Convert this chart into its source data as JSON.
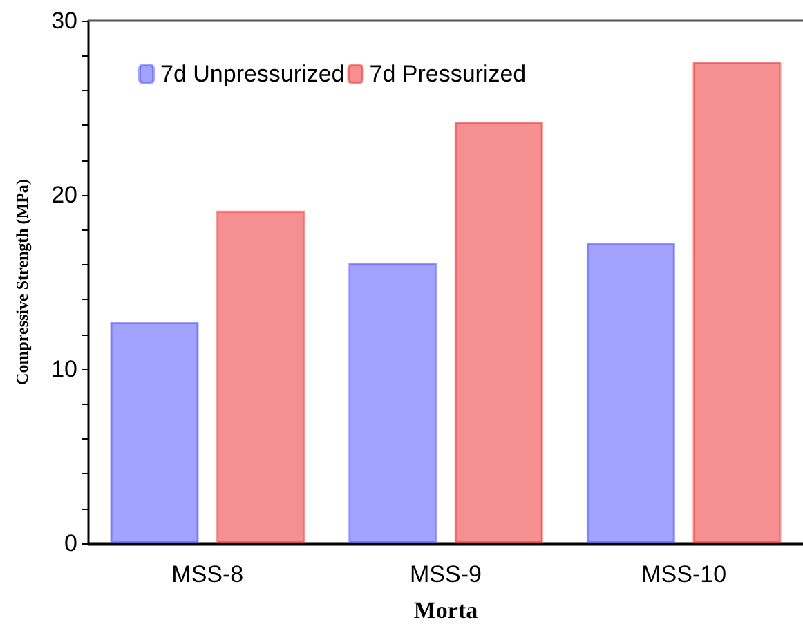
{
  "chart_data": {
    "type": "bar",
    "categories": [
      "MSS-8",
      "MSS-9",
      "MSS-10"
    ],
    "series": [
      {
        "name": "7d Unpressurized",
        "color": "#5555ff",
        "values": [
          12.7,
          16.1,
          17.25
        ]
      },
      {
        "name": "7d Pressurized",
        "color": "#ee3333",
        "values": [
          19.1,
          24.2,
          27.65
        ]
      }
    ],
    "xlabel": "Morta",
    "ylabel": "Compressive Strength (MPa)",
    "ylim": [
      0,
      30
    ],
    "yticks": [
      0,
      {
        "value": 2,
        "label": null
      },
      {
        "value": 4,
        "label": null
      },
      {
        "value": 6,
        "label": null
      },
      {
        "value": 8,
        "label": null
      },
      10,
      {
        "value": 12,
        "label": null
      },
      {
        "value": 14,
        "label": null
      },
      {
        "value": 16,
        "label": null
      },
      {
        "value": 18,
        "label": null
      },
      20,
      {
        "value": 22,
        "label": null
      },
      {
        "value": 24,
        "label": null
      },
      {
        "value": 26,
        "label": null
      },
      {
        "value": 28,
        "label": null
      },
      30
    ],
    "legend": "top left",
    "grid": false
  }
}
